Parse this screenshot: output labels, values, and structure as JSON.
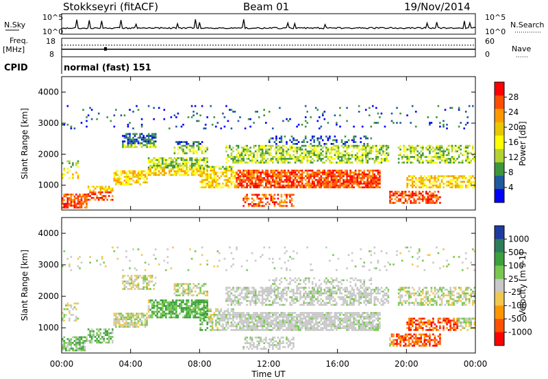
{
  "header": {
    "station": "Stokkseyri (fitACF)",
    "beam": "Beam 01",
    "date": "19/Nov/2014"
  },
  "top_panels": {
    "nsky_label": "N.Sky",
    "nsky_ticks": [
      "10^5",
      "10^0"
    ],
    "nsearch_label": "N.Search",
    "freq_label": "Freq.",
    "freq_unit": "[MHz]",
    "freq_ticks": [
      "18",
      "8"
    ],
    "nave_label": "Nave",
    "nave_ticks": [
      "60",
      "0"
    ],
    "cpid_label": "CPID",
    "cpid_value": "normal (fast) 151"
  },
  "chart_data": [
    {
      "type": "heatmap",
      "name": "power",
      "ylabel": "Slant Range [km]",
      "xlabel": "",
      "ylim": [
        200,
        4500
      ],
      "y_ticks": [
        "1000",
        "2000",
        "3000",
        "4000"
      ],
      "colorbar_label": "Power [dB]",
      "colorbar_ticks": [
        "28",
        "24",
        "20",
        "16",
        "12",
        "8",
        "4"
      ],
      "colorbar_colors": [
        "#ff0000",
        "#ff4d00",
        "#ff9900",
        "#e8c800",
        "#ffff00",
        "#b4d232",
        "#3c963c",
        "#1e5aa0",
        "#0000ff"
      ]
    },
    {
      "type": "heatmap",
      "name": "velocity",
      "ylabel": "Slant Range [km]",
      "xlabel": "Time UT",
      "ylim": [
        200,
        4500
      ],
      "y_ticks": [
        "1000",
        "2000",
        "3000",
        "4000"
      ],
      "x_ticks": [
        "00:00",
        "04:00",
        "08:00",
        "12:00",
        "16:00",
        "20:00",
        "00:00"
      ],
      "colorbar_label": "Velocity [m s-1]",
      "colorbar_ticks": [
        "1000",
        "500",
        "100",
        "25",
        "-25",
        "-100",
        "-500",
        "-1000"
      ],
      "colorbar_colors": [
        "#1e3ca0",
        "#2d7d5a",
        "#3ca03c",
        "#78c850",
        "#c8c8c8",
        "#f0c850",
        "#ff9600",
        "#ff5000",
        "#ff0000"
      ]
    }
  ]
}
